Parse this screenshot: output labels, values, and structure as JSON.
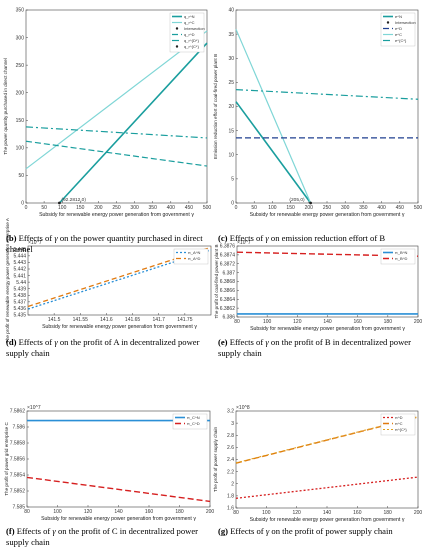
{
  "captions": [
    {
      "label": "(b)",
      "pre": "Effects of",
      "sym": "γ",
      "post": "on the power quantity purchased in direct channel"
    },
    {
      "label": "(c)",
      "pre": "Effects of",
      "sym": "γ",
      "post": "on emission reduction effort of B"
    },
    {
      "label": "(d)",
      "pre": "Effects of",
      "sym": "γ",
      "post": "on the profit of A in decentralized power supply chain"
    },
    {
      "label": "(e)",
      "pre": "Effects of",
      "sym": "γ",
      "post": "on the profit of B in decentralized power supply chain"
    },
    {
      "label": "(f)",
      "pre": "Effects of",
      "sym": "γ",
      "post": "on the profit of C in decentralized power supply chain"
    },
    {
      "label": "(g)",
      "pre": "Effects of",
      "sym": "γ",
      "post": "on the profit of power supply chain"
    }
  ],
  "chart_data": [
    {
      "id": "b",
      "type": "line",
      "xlabel": "Subsidy for renewable energy power generation from government γ",
      "ylabel": "The power quantity purchased in direct channel",
      "xlim": [
        0,
        500
      ],
      "ylim": [
        0,
        350
      ],
      "xticks": [
        0,
        50,
        100,
        150,
        200,
        250,
        300,
        350,
        400,
        450,
        500
      ],
      "yticks": [
        0,
        50,
        100,
        150,
        200,
        250,
        300,
        350
      ],
      "legend": [
        "q_r^N",
        "q_r^C",
        "Intersection",
        "q_r^D",
        "q_r^{D*}",
        "q_r^{C*}"
      ],
      "annotation": "(92.2812,0)",
      "series": [
        {
          "name": "q_r^N",
          "color": "#1a9e9e",
          "dash": "",
          "width": 1.6,
          "x": [
            92.28,
            500
          ],
          "y": [
            0,
            290
          ]
        },
        {
          "name": "q_r^C",
          "color": "#7fd6d6",
          "dash": "",
          "width": 1.2,
          "x": [
            0,
            500
          ],
          "y": [
            62,
            312
          ]
        },
        {
          "name": "q_r^D",
          "color": "#1a9e9e",
          "dash": "6,3",
          "width": 1.2,
          "x": [
            0,
            500
          ],
          "y": [
            112,
            67
          ]
        },
        {
          "name": "q_r^{D*}",
          "color": "#1a9e9e",
          "dash": "7,3,2,3",
          "width": 1.2,
          "x": [
            0,
            500
          ],
          "y": [
            138,
            118
          ]
        }
      ],
      "points": [
        {
          "x": 92.28,
          "y": 0,
          "color": "#222"
        }
      ]
    },
    {
      "id": "c",
      "type": "line",
      "xlabel": "Subsidy for renewable energy power generation from government γ",
      "ylabel": "Emission reduction effort of coal-fired power plant B",
      "xlim": [
        0,
        500
      ],
      "ylim": [
        0,
        40
      ],
      "xticks": [
        0,
        50,
        100,
        150,
        200,
        250,
        300,
        350,
        400,
        450,
        500
      ],
      "yticks": [
        0,
        5,
        10,
        15,
        20,
        25,
        30,
        35,
        40
      ],
      "legend": [
        "e^N",
        "Intersection",
        "e^D",
        "e^C",
        "e^{C*}"
      ],
      "annotation": "(205,0)",
      "series": [
        {
          "name": "e^N",
          "color": "#1a9e9e",
          "dash": "",
          "width": 1.6,
          "x": [
            0,
            205
          ],
          "y": [
            21,
            0
          ]
        },
        {
          "name": "e^C",
          "color": "#7fd6d6",
          "dash": "",
          "width": 1.2,
          "x": [
            0,
            205
          ],
          "y": [
            36,
            0
          ]
        },
        {
          "name": "e^D",
          "color": "#1f3f8f",
          "dash": "6,3",
          "width": 1.3,
          "x": [
            0,
            500
          ],
          "y": [
            13.5,
            13.5
          ]
        },
        {
          "name": "e^{C*}",
          "color": "#1a9e9e",
          "dash": "7,3,2,3",
          "width": 1.2,
          "x": [
            0,
            500
          ],
          "y": [
            23.5,
            21.5
          ]
        }
      ],
      "points": [
        {
          "x": 205,
          "y": 0,
          "color": "#222"
        }
      ]
    },
    {
      "id": "d",
      "type": "line",
      "xlabel": "Subsidy for renewable energy power generation from government γ",
      "ylabel": "The profit of renewable energy power generation enterprise A",
      "exponent": "×10^7",
      "xlim": [
        141.45,
        141.8
      ],
      "ylim": [
        5.435,
        5.4455
      ],
      "xticks": [
        141.5,
        141.55,
        141.6,
        141.65,
        141.7,
        141.75
      ],
      "yticks": [
        5.435,
        5.436,
        5.437,
        5.438,
        5.439,
        5.44,
        5.441,
        5.442,
        5.443,
        5.444,
        5.445
      ],
      "legend": [
        "π_A^N",
        "π_A^D"
      ],
      "series": [
        {
          "name": "π_A^N",
          "color": "#2a8fd6",
          "dash": "2,2",
          "width": 1.3,
          "x": [
            141.45,
            141.8
          ],
          "y": [
            5.4359,
            5.4449
          ]
        },
        {
          "name": "π_A^D",
          "color": "#e07a10",
          "dash": "5,3",
          "width": 1.3,
          "x": [
            141.45,
            141.8
          ],
          "y": [
            5.4363,
            5.4453
          ]
        }
      ]
    },
    {
      "id": "e",
      "type": "line",
      "xlabel": "Subsidy for renewable energy power generation from government γ",
      "ylabel": "The profit of coal-fired power plant B",
      "exponent": "×10^7",
      "xlim": [
        80,
        200
      ],
      "ylim": [
        6.386,
        6.3876
      ],
      "xticks": [
        80,
        100,
        120,
        140,
        160,
        180,
        200
      ],
      "yticks": [
        6.386,
        6.3862,
        6.3864,
        6.3866,
        6.3868,
        6.387,
        6.3872,
        6.3874,
        6.3876
      ],
      "legend": [
        "π_B^N",
        "π_B^D"
      ],
      "series": [
        {
          "name": "π_B^N",
          "color": "#2a8fd6",
          "dash": "",
          "width": 1.6,
          "x": [
            80,
            200
          ],
          "y": [
            6.38607,
            6.38607
          ]
        },
        {
          "name": "π_B^D",
          "color": "#d62020",
          "dash": "6,3",
          "width": 1.4,
          "x": [
            80,
            200
          ],
          "y": [
            6.38746,
            6.38737
          ]
        }
      ]
    },
    {
      "id": "f",
      "type": "line",
      "xlabel": "Subsidy for renewable energy power generation from government γ",
      "ylabel": "The profit of power grid enterprise C",
      "exponent": "×10^7",
      "xlim": [
        80,
        200
      ],
      "ylim": [
        7.585,
        7.5862
      ],
      "xticks": [
        80,
        100,
        120,
        140,
        160,
        180,
        200
      ],
      "yticks": [
        7.585,
        7.5852,
        7.5854,
        7.5856,
        7.5858,
        7.586,
        7.5862
      ],
      "legend": [
        "π_C^N",
        "π_C^D"
      ],
      "series": [
        {
          "name": "π_C^N",
          "color": "#2a8fd6",
          "dash": "",
          "width": 1.6,
          "x": [
            80,
            200
          ],
          "y": [
            7.58608,
            7.58608
          ]
        },
        {
          "name": "π_C^D",
          "color": "#d62020",
          "dash": "6,3",
          "width": 1.4,
          "x": [
            80,
            200
          ],
          "y": [
            7.58537,
            7.58507
          ]
        }
      ]
    },
    {
      "id": "g",
      "type": "line",
      "xlabel": "Subsidy for renewable energy power generation from government γ",
      "ylabel": "The profit of power supply chain",
      "exponent": "×10^8",
      "xlim": [
        80,
        200
      ],
      "ylim": [
        1.6,
        3.2
      ],
      "xticks": [
        80,
        100,
        120,
        140,
        160,
        180,
        200
      ],
      "yticks": [
        1.6,
        1.8,
        2,
        2.2,
        2.4,
        2.6,
        2.8,
        3,
        3.2
      ],
      "legend": [
        "π^D",
        "π^C",
        "π^{C*}"
      ],
      "series": [
        {
          "name": "π^D",
          "color": "#d62020",
          "dash": "2,2",
          "width": 1.3,
          "x": [
            80,
            200
          ],
          "y": [
            1.76,
            2.11
          ]
        },
        {
          "name": "π^C",
          "color": "#e07a10",
          "dash": "6,3",
          "width": 1.4,
          "x": [
            80,
            200
          ],
          "y": [
            2.34,
            3.1
          ]
        },
        {
          "name": "π^{C*}",
          "color": "#e0a020",
          "dash": "2,2",
          "width": 1.1,
          "x": [
            80,
            200
          ],
          "y": [
            2.345,
            3.105
          ]
        }
      ]
    }
  ]
}
